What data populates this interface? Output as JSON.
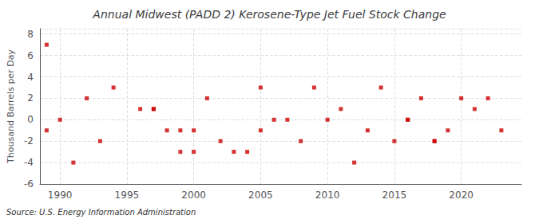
{
  "chart_data": {
    "type": "scatter",
    "title": "Annual Midwest (PADD 2) Kerosene-Type Jet Fuel Stock Change",
    "ylabel": "Thousand Barrels per Day",
    "source": "Source: U.S. Energy Information Administration",
    "color": "#cc0000",
    "marker": "square",
    "grid": true,
    "xlim": [
      1988.5,
      2024.5
    ],
    "xticks": [
      1990,
      1995,
      2000,
      2005,
      2010,
      2015,
      2020
    ],
    "ylim": [
      -6,
      8.5
    ],
    "yticks": [
      -6,
      -4,
      -2,
      0,
      2,
      4,
      6,
      8
    ],
    "x": [
      1989,
      1989,
      1990,
      1991,
      1992,
      1993,
      1994,
      1996,
      1997,
      1997,
      1998,
      1999,
      1999,
      2000,
      2000,
      2001,
      2002,
      2003,
      2004,
      2005,
      2005,
      2006,
      2007,
      2008,
      2009,
      2010,
      2011,
      2012,
      2013,
      2014,
      2015,
      2016,
      2016,
      2017,
      2018,
      2018,
      2019,
      2020,
      2021,
      2022,
      2023
    ],
    "values": [
      7,
      -1,
      0,
      -4,
      2,
      -2,
      3,
      1,
      1,
      1,
      -1,
      -1,
      -3,
      -1,
      -3,
      2,
      -2,
      -3,
      -3,
      3,
      -1,
      0,
      0,
      -2,
      3,
      0,
      1,
      -4,
      -1,
      3,
      -2,
      0,
      0,
      2,
      -2,
      -2,
      -1,
      2,
      1,
      2,
      -1
    ]
  }
}
